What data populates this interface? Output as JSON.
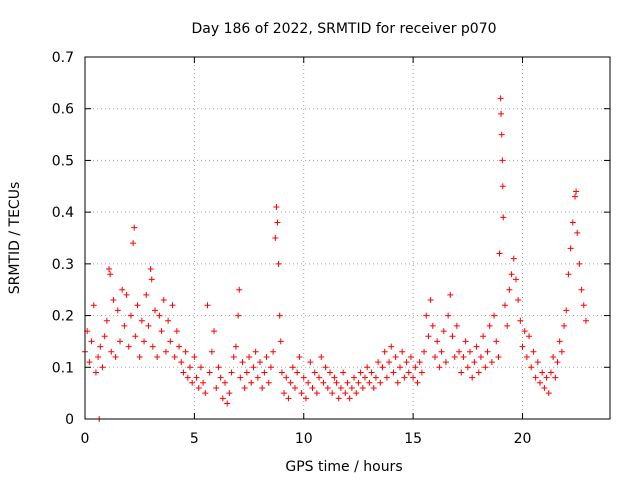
{
  "chart_data": {
    "type": "scatter",
    "title": "Day 186 of 2022, SRMTID for receiver p070",
    "xlabel": "GPS time / hours",
    "ylabel": "SRMTID / TECUs",
    "xlim": [
      0,
      24
    ],
    "ylim": [
      0,
      0.7
    ],
    "xticks": [
      0,
      5,
      10,
      15,
      20
    ],
    "xtick_labels": [
      "0",
      "5",
      "10",
      "15",
      "20"
    ],
    "yticks": [
      0,
      0.1,
      0.2,
      0.3,
      0.4,
      0.5,
      0.6,
      0.7
    ],
    "ytick_labels": [
      "0",
      "0.1",
      "0.2",
      "0.3",
      "0.4",
      "0.5",
      "0.6",
      "0.7"
    ],
    "grid": true,
    "marker": "+",
    "marker_color": "#ff0000",
    "series": [
      {
        "name": "SRMTID",
        "points": [
          [
            0.0,
            0.13
          ],
          [
            0.1,
            0.17
          ],
          [
            0.2,
            0.11
          ],
          [
            0.3,
            0.15
          ],
          [
            0.4,
            0.22
          ],
          [
            0.5,
            0.09
          ],
          [
            0.6,
            0.12
          ],
          [
            0.65,
            0.0
          ],
          [
            0.7,
            0.14
          ],
          [
            0.8,
            0.1
          ],
          [
            0.9,
            0.16
          ],
          [
            1.0,
            0.19
          ],
          [
            1.1,
            0.29
          ],
          [
            1.15,
            0.28
          ],
          [
            1.2,
            0.13
          ],
          [
            1.3,
            0.23
          ],
          [
            1.4,
            0.12
          ],
          [
            1.5,
            0.21
          ],
          [
            1.6,
            0.15
          ],
          [
            1.7,
            0.25
          ],
          [
            1.8,
            0.18
          ],
          [
            1.9,
            0.24
          ],
          [
            2.0,
            0.14
          ],
          [
            2.1,
            0.2
          ],
          [
            2.2,
            0.34
          ],
          [
            2.25,
            0.37
          ],
          [
            2.3,
            0.16
          ],
          [
            2.4,
            0.22
          ],
          [
            2.5,
            0.12
          ],
          [
            2.6,
            0.19
          ],
          [
            2.7,
            0.15
          ],
          [
            2.8,
            0.24
          ],
          [
            2.9,
            0.18
          ],
          [
            3.0,
            0.29
          ],
          [
            3.05,
            0.27
          ],
          [
            3.1,
            0.14
          ],
          [
            3.2,
            0.21
          ],
          [
            3.3,
            0.12
          ],
          [
            3.4,
            0.2
          ],
          [
            3.5,
            0.17
          ],
          [
            3.6,
            0.23
          ],
          [
            3.7,
            0.13
          ],
          [
            3.8,
            0.19
          ],
          [
            3.9,
            0.15
          ],
          [
            4.0,
            0.22
          ],
          [
            4.1,
            0.12
          ],
          [
            4.2,
            0.17
          ],
          [
            4.3,
            0.14
          ],
          [
            4.4,
            0.11
          ],
          [
            4.5,
            0.09
          ],
          [
            4.6,
            0.13
          ],
          [
            4.7,
            0.08
          ],
          [
            4.8,
            0.1
          ],
          [
            4.9,
            0.07
          ],
          [
            5.0,
            0.12
          ],
          [
            5.1,
            0.08
          ],
          [
            5.2,
            0.06
          ],
          [
            5.3,
            0.1
          ],
          [
            5.4,
            0.07
          ],
          [
            5.5,
            0.05
          ],
          [
            5.6,
            0.22
          ],
          [
            5.7,
            0.09
          ],
          [
            5.8,
            0.13
          ],
          [
            5.9,
            0.17
          ],
          [
            6.0,
            0.06
          ],
          [
            6.1,
            0.1
          ],
          [
            6.2,
            0.08
          ],
          [
            6.3,
            0.04
          ],
          [
            6.4,
            0.07
          ],
          [
            6.5,
            0.03
          ],
          [
            6.6,
            0.05
          ],
          [
            6.7,
            0.09
          ],
          [
            6.8,
            0.12
          ],
          [
            6.9,
            0.14
          ],
          [
            7.0,
            0.2
          ],
          [
            7.05,
            0.25
          ],
          [
            7.1,
            0.08
          ],
          [
            7.2,
            0.11
          ],
          [
            7.3,
            0.06
          ],
          [
            7.4,
            0.09
          ],
          [
            7.5,
            0.12
          ],
          [
            7.6,
            0.07
          ],
          [
            7.7,
            0.1
          ],
          [
            7.8,
            0.13
          ],
          [
            7.9,
            0.08
          ],
          [
            8.0,
            0.11
          ],
          [
            8.1,
            0.06
          ],
          [
            8.2,
            0.09
          ],
          [
            8.3,
            0.12
          ],
          [
            8.4,
            0.07
          ],
          [
            8.5,
            0.1
          ],
          [
            8.6,
            0.13
          ],
          [
            8.7,
            0.35
          ],
          [
            8.75,
            0.41
          ],
          [
            8.8,
            0.38
          ],
          [
            8.85,
            0.3
          ],
          [
            8.9,
            0.2
          ],
          [
            8.95,
            0.15
          ],
          [
            9.0,
            0.09
          ],
          [
            9.1,
            0.05
          ],
          [
            9.2,
            0.08
          ],
          [
            9.3,
            0.04
          ],
          [
            9.4,
            0.07
          ],
          [
            9.5,
            0.1
          ],
          [
            9.6,
            0.06
          ],
          [
            9.7,
            0.09
          ],
          [
            9.8,
            0.12
          ],
          [
            9.9,
            0.05
          ],
          [
            10.0,
            0.08
          ],
          [
            10.1,
            0.04
          ],
          [
            10.2,
            0.07
          ],
          [
            10.3,
            0.11
          ],
          [
            10.4,
            0.06
          ],
          [
            10.5,
            0.09
          ],
          [
            10.6,
            0.05
          ],
          [
            10.7,
            0.08
          ],
          [
            10.8,
            0.12
          ],
          [
            10.9,
            0.07
          ],
          [
            11.0,
            0.1
          ],
          [
            11.1,
            0.06
          ],
          [
            11.2,
            0.09
          ],
          [
            11.3,
            0.05
          ],
          [
            11.4,
            0.08
          ],
          [
            11.5,
            0.07
          ],
          [
            11.6,
            0.04
          ],
          [
            11.7,
            0.06
          ],
          [
            11.8,
            0.09
          ],
          [
            11.9,
            0.05
          ],
          [
            12.0,
            0.07
          ],
          [
            12.1,
            0.04
          ],
          [
            12.2,
            0.06
          ],
          [
            12.3,
            0.08
          ],
          [
            12.4,
            0.05
          ],
          [
            12.5,
            0.07
          ],
          [
            12.6,
            0.09
          ],
          [
            12.7,
            0.06
          ],
          [
            12.8,
            0.08
          ],
          [
            12.9,
            0.1
          ],
          [
            13.0,
            0.07
          ],
          [
            13.1,
            0.09
          ],
          [
            13.2,
            0.06
          ],
          [
            13.3,
            0.08
          ],
          [
            13.4,
            0.11
          ],
          [
            13.5,
            0.07
          ],
          [
            13.6,
            0.1
          ],
          [
            13.7,
            0.13
          ],
          [
            13.8,
            0.08
          ],
          [
            13.9,
            0.11
          ],
          [
            14.0,
            0.14
          ],
          [
            14.1,
            0.09
          ],
          [
            14.2,
            0.12
          ],
          [
            14.3,
            0.07
          ],
          [
            14.4,
            0.1
          ],
          [
            14.5,
            0.13
          ],
          [
            14.6,
            0.08
          ],
          [
            14.7,
            0.11
          ],
          [
            14.8,
            0.09
          ],
          [
            14.9,
            0.12
          ],
          [
            15.0,
            0.08
          ],
          [
            15.1,
            0.1
          ],
          [
            15.2,
            0.07
          ],
          [
            15.3,
            0.11
          ],
          [
            15.4,
            0.09
          ],
          [
            15.5,
            0.13
          ],
          [
            15.6,
            0.2
          ],
          [
            15.7,
            0.16
          ],
          [
            15.8,
            0.23
          ],
          [
            15.9,
            0.18
          ],
          [
            16.0,
            0.12
          ],
          [
            16.1,
            0.15
          ],
          [
            16.2,
            0.1
          ],
          [
            16.3,
            0.13
          ],
          [
            16.4,
            0.17
          ],
          [
            16.5,
            0.11
          ],
          [
            16.6,
            0.2
          ],
          [
            16.7,
            0.24
          ],
          [
            16.8,
            0.16
          ],
          [
            16.9,
            0.12
          ],
          [
            17.0,
            0.18
          ],
          [
            17.1,
            0.13
          ],
          [
            17.2,
            0.09
          ],
          [
            17.3,
            0.12
          ],
          [
            17.4,
            0.15
          ],
          [
            17.5,
            0.1
          ],
          [
            17.6,
            0.13
          ],
          [
            17.7,
            0.08
          ],
          [
            17.8,
            0.11
          ],
          [
            17.9,
            0.14
          ],
          [
            18.0,
            0.09
          ],
          [
            18.1,
            0.12
          ],
          [
            18.2,
            0.16
          ],
          [
            18.3,
            0.1
          ],
          [
            18.4,
            0.13
          ],
          [
            18.5,
            0.18
          ],
          [
            18.6,
            0.11
          ],
          [
            18.7,
            0.2
          ],
          [
            18.8,
            0.15
          ],
          [
            18.9,
            0.12
          ],
          [
            18.95,
            0.32
          ],
          [
            19.0,
            0.62
          ],
          [
            19.02,
            0.59
          ],
          [
            19.05,
            0.55
          ],
          [
            19.08,
            0.5
          ],
          [
            19.1,
            0.45
          ],
          [
            19.12,
            0.39
          ],
          [
            19.2,
            0.22
          ],
          [
            19.3,
            0.18
          ],
          [
            19.4,
            0.25
          ],
          [
            19.5,
            0.28
          ],
          [
            19.6,
            0.31
          ],
          [
            19.7,
            0.27
          ],
          [
            19.8,
            0.23
          ],
          [
            19.9,
            0.19
          ],
          [
            20.0,
            0.14
          ],
          [
            20.1,
            0.17
          ],
          [
            20.2,
            0.12
          ],
          [
            20.3,
            0.16
          ],
          [
            20.4,
            0.1
          ],
          [
            20.5,
            0.13
          ],
          [
            20.6,
            0.08
          ],
          [
            20.7,
            0.11
          ],
          [
            20.8,
            0.07
          ],
          [
            20.9,
            0.09
          ],
          [
            21.0,
            0.06
          ],
          [
            21.1,
            0.08
          ],
          [
            21.2,
            0.05
          ],
          [
            21.3,
            0.09
          ],
          [
            21.4,
            0.12
          ],
          [
            21.5,
            0.08
          ],
          [
            21.6,
            0.11
          ],
          [
            21.7,
            0.15
          ],
          [
            21.8,
            0.13
          ],
          [
            21.9,
            0.18
          ],
          [
            22.0,
            0.21
          ],
          [
            22.1,
            0.28
          ],
          [
            22.2,
            0.33
          ],
          [
            22.3,
            0.38
          ],
          [
            22.4,
            0.43
          ],
          [
            22.45,
            0.44
          ],
          [
            22.5,
            0.36
          ],
          [
            22.6,
            0.3
          ],
          [
            22.7,
            0.25
          ],
          [
            22.8,
            0.22
          ],
          [
            22.9,
            0.19
          ]
        ]
      }
    ]
  }
}
